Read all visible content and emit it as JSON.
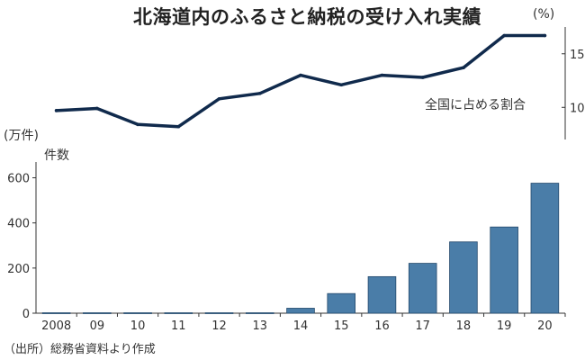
{
  "title": "北海道内のふるさと納税の受け入れ実績",
  "source": "（出所）総務省資料より作成",
  "colors": {
    "line": "#102a4c",
    "bar": "#4a7da8",
    "axis": "#333333"
  },
  "chart_data": [
    {
      "type": "line",
      "name": "全国に占める割合",
      "y_unit": "(%)",
      "ylim": [
        7,
        17.5
      ],
      "yticks": [
        10,
        15
      ],
      "axis_side": "right",
      "x": [
        "2008",
        "09",
        "10",
        "11",
        "12",
        "13",
        "14",
        "15",
        "16",
        "17",
        "18",
        "19",
        "20"
      ],
      "values": [
        9.7,
        9.9,
        8.4,
        8.2,
        10.8,
        11.3,
        13.0,
        12.1,
        13.0,
        12.8,
        13.7,
        16.7,
        16.7
      ]
    },
    {
      "type": "bar",
      "name": "件数",
      "y_unit": "(万件)",
      "ylim": [
        0,
        650
      ],
      "yticks": [
        0,
        200,
        400,
        600
      ],
      "categories": [
        "2008",
        "09",
        "10",
        "11",
        "12",
        "13",
        "14",
        "15",
        "16",
        "17",
        "18",
        "19",
        "20"
      ],
      "values": [
        2,
        2,
        2,
        2,
        2,
        2,
        22,
        87,
        162,
        221,
        316,
        382,
        576
      ]
    }
  ]
}
